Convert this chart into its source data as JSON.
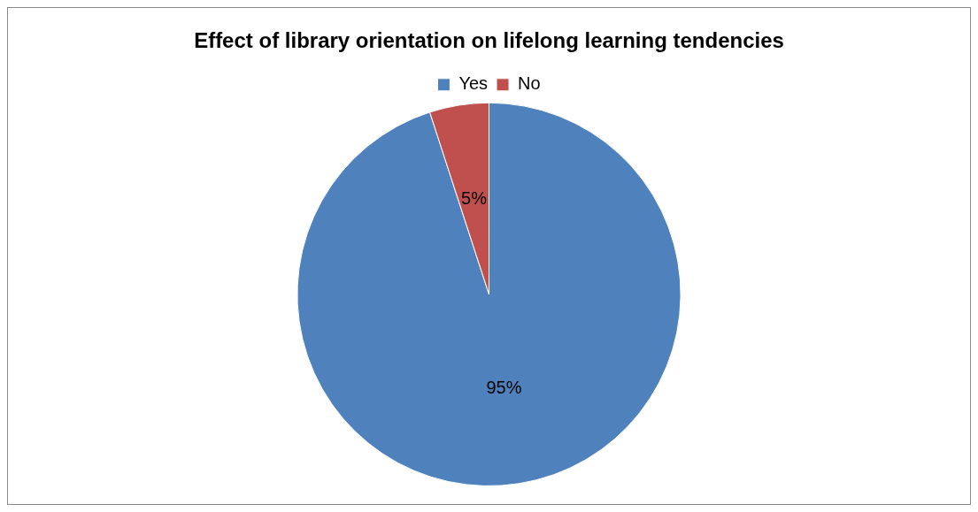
{
  "chart_data": {
    "type": "pie",
    "title": "Effect of library orientation on lifelong learning tendencies",
    "categories": [
      "Yes",
      "No"
    ],
    "values": [
      95,
      5
    ],
    "colors": [
      "#4f81bd",
      "#c0504d"
    ],
    "value_labels": [
      "95%",
      "5%"
    ],
    "legend": "top"
  }
}
